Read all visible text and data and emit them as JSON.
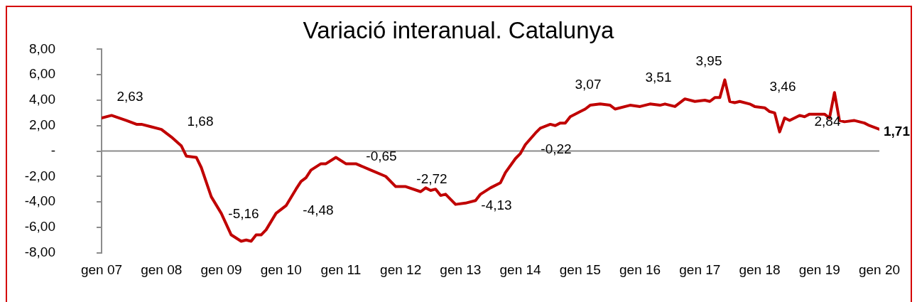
{
  "chart_data": {
    "type": "line",
    "title": "Variació interanual. Catalunya",
    "x": [
      "2007-01",
      "2007-03",
      "2007-06",
      "2007-08",
      "2007-09",
      "2007-11",
      "2008-01",
      "2008-03",
      "2008-05",
      "2008-06",
      "2008-08",
      "2008-09",
      "2008-11",
      "2009-01",
      "2009-03",
      "2009-05",
      "2009-06",
      "2009-07",
      "2009-08",
      "2009-09",
      "2009-10",
      "2009-12",
      "2010-02",
      "2010-04",
      "2010-05",
      "2010-06",
      "2010-07",
      "2010-09",
      "2010-10",
      "2010-12",
      "2011-02",
      "2011-04",
      "2011-07",
      "2011-10",
      "2011-12",
      "2012-02",
      "2012-05",
      "2012-06",
      "2012-07",
      "2012-08",
      "2012-09",
      "2012-10",
      "2012-12",
      "2013-02",
      "2013-04",
      "2013-05",
      "2013-07",
      "2013-09",
      "2013-10",
      "2013-12",
      "2014-01",
      "2014-02",
      "2014-04",
      "2014-05",
      "2014-07",
      "2014-08",
      "2014-09",
      "2014-10",
      "2014-11",
      "2015-01",
      "2015-02",
      "2015-03",
      "2015-05",
      "2015-07",
      "2015-08",
      "2015-11",
      "2016-01",
      "2016-03",
      "2016-05",
      "2016-06",
      "2016-08",
      "2016-10",
      "2016-12",
      "2017-02",
      "2017-03",
      "2017-04",
      "2017-05",
      "2017-06",
      "2017-07",
      "2017-08",
      "2017-09",
      "2017-11",
      "2017-12",
      "2018-02",
      "2018-03",
      "2018-04",
      "2018-05",
      "2018-06",
      "2018-07",
      "2018-09",
      "2018-10",
      "2018-11",
      "2019-02",
      "2019-03",
      "2019-04",
      "2019-05",
      "2019-06",
      "2019-08",
      "2019-09",
      "2019-10",
      "2019-11",
      "2020-01"
    ],
    "series": [
      {
        "color": "#c00000",
        "values": [
          2.6,
          2.8,
          2.4,
          2.1,
          2.1,
          1.9,
          1.7,
          1.1,
          0.4,
          -0.4,
          -0.5,
          -1.3,
          -3.6,
          -4.9,
          -6.6,
          -7.1,
          -7.0,
          -7.1,
          -6.6,
          -6.6,
          -6.2,
          -4.9,
          -4.3,
          -3.0,
          -2.4,
          -2.1,
          -1.5,
          -1.0,
          -1.0,
          -0.5,
          -1.0,
          -1.0,
          -1.5,
          -2.0,
          -2.8,
          -2.8,
          -3.2,
          -2.9,
          -3.1,
          -3.0,
          -3.5,
          -3.4,
          -4.2,
          -4.1,
          -3.9,
          -3.4,
          -2.9,
          -2.5,
          -1.7,
          -0.6,
          -0.2,
          0.5,
          1.4,
          1.8,
          2.1,
          2.0,
          2.2,
          2.2,
          2.7,
          3.1,
          3.3,
          3.6,
          3.7,
          3.6,
          3.3,
          3.6,
          3.5,
          3.7,
          3.6,
          3.7,
          3.5,
          4.1,
          3.9,
          4.0,
          3.9,
          4.2,
          4.2,
          5.6,
          3.9,
          3.8,
          3.9,
          3.7,
          3.5,
          3.4,
          3.1,
          3.0,
          1.5,
          2.6,
          2.4,
          2.8,
          2.7,
          2.9,
          2.9,
          2.6,
          4.6,
          2.4,
          2.3,
          2.4,
          2.3,
          2.2,
          2.0,
          1.71
        ],
        "value_labels": [
          null,
          null,
          null,
          null,
          null,
          null,
          null,
          null,
          null,
          null,
          null,
          null,
          null,
          null,
          null,
          null,
          null,
          null,
          null,
          null,
          null,
          null,
          null,
          null,
          null,
          null,
          null,
          null,
          null,
          null,
          null,
          null,
          null,
          null,
          null,
          null,
          null,
          null,
          null,
          null,
          null,
          null,
          null,
          null,
          null,
          null,
          null,
          null,
          null,
          null,
          null,
          null,
          null,
          null,
          null,
          null,
          null,
          null,
          null,
          null,
          null,
          null,
          null,
          null,
          null,
          null,
          null,
          null,
          null,
          null,
          null,
          null,
          null,
          null,
          null,
          null,
          null,
          null,
          null,
          null,
          null,
          null,
          null,
          null,
          null,
          null,
          null,
          null,
          null,
          null,
          null,
          null,
          null,
          null,
          null,
          null,
          null,
          null,
          null,
          null,
          null,
          "1,71"
        ]
      }
    ],
    "xlim": [
      "2007-01",
      "2020-01"
    ],
    "xticks": [
      {
        "value": "2007-01",
        "label": "gen 07"
      },
      {
        "value": "2008-01",
        "label": "gen 08"
      },
      {
        "value": "2009-01",
        "label": "gen 09"
      },
      {
        "value": "2010-01",
        "label": "gen 10"
      },
      {
        "value": "2011-01",
        "label": "gen 11"
      },
      {
        "value": "2012-01",
        "label": "gen 12"
      },
      {
        "value": "2013-01",
        "label": "gen 13"
      },
      {
        "value": "2014-01",
        "label": "gen 14"
      },
      {
        "value": "2015-01",
        "label": "gen 15"
      },
      {
        "value": "2016-01",
        "label": "gen 16"
      },
      {
        "value": "2017-01",
        "label": "gen 17"
      },
      {
        "value": "2018-01",
        "label": "gen 18"
      },
      {
        "value": "2019-01",
        "label": "gen 19"
      },
      {
        "value": "2020-01",
        "label": "gen 20"
      }
    ],
    "ylim": [
      -8,
      8
    ],
    "yticks": [
      {
        "value": 8,
        "label": "8,00"
      },
      {
        "value": 6,
        "label": "6,00"
      },
      {
        "value": 4,
        "label": "4,00"
      },
      {
        "value": 2,
        "label": "2,00"
      },
      {
        "value": 0,
        "label": "-"
      },
      {
        "value": -2,
        "label": "-2,00"
      },
      {
        "value": -4,
        "label": "-4,00"
      },
      {
        "value": -6,
        "label": "-6,00"
      },
      {
        "value": -8,
        "label": "-8,00"
      }
    ],
    "annotations": [
      "2,63",
      "1,68",
      "-5,16",
      "-4,48",
      "-0,65",
      "-2,72",
      "-4,13",
      "-0,22",
      "3,07",
      "3,51",
      "3,95",
      "3,46",
      "2,84"
    ],
    "ref_lines": [
      {
        "axis": "y",
        "value": 0,
        "color": "#8c8c8c"
      }
    ],
    "grid": false,
    "legend": false,
    "marker": "none",
    "line_style": "solid"
  }
}
